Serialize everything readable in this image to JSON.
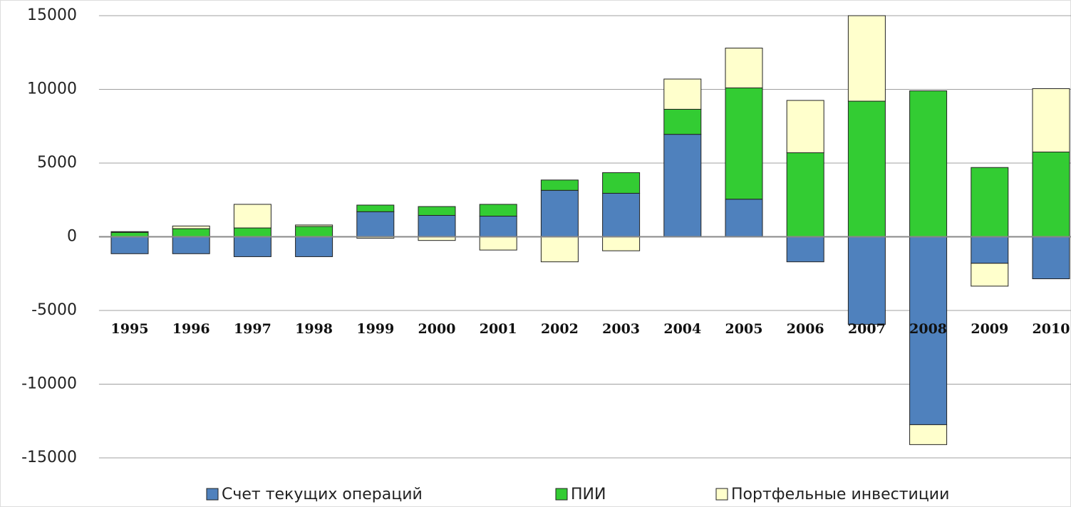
{
  "chart_data": {
    "type": "stacked_bar",
    "categories": [
      "1995",
      "1996",
      "1997",
      "1998",
      "1999",
      "2000",
      "2001",
      "2002",
      "2003",
      "2004",
      "2005",
      "2006",
      "2007",
      "2008",
      "2009",
      "2010"
    ],
    "series": [
      {
        "name": "Счет текущих операций",
        "color": "#4f81bd",
        "values": [
          -1150,
          -1150,
          -1350,
          -1350,
          1700,
          1450,
          1400,
          3150,
          2950,
          6950,
          2550,
          -1700,
          -5950,
          -12750,
          -1800,
          -2850
        ]
      },
      {
        "name": "ПИИ",
        "color": "#33cc33",
        "values": [
          300,
          550,
          600,
          700,
          450,
          600,
          800,
          700,
          1400,
          1700,
          7550,
          5700,
          9200,
          9900,
          4700,
          5750
        ]
      },
      {
        "name": "Портфельные инвестиции",
        "color": "#ffffcc",
        "values": [
          50,
          180,
          1600,
          100,
          -100,
          -250,
          -900,
          -1700,
          -950,
          2050,
          2700,
          3550,
          5800,
          -1350,
          -1550,
          4300
        ]
      }
    ],
    "ylim": [
      -15000,
      15000
    ],
    "yticks": [
      -15000,
      -10000,
      -5000,
      0,
      5000,
      10000,
      15000
    ],
    "grid": true,
    "legend": "bottom"
  }
}
